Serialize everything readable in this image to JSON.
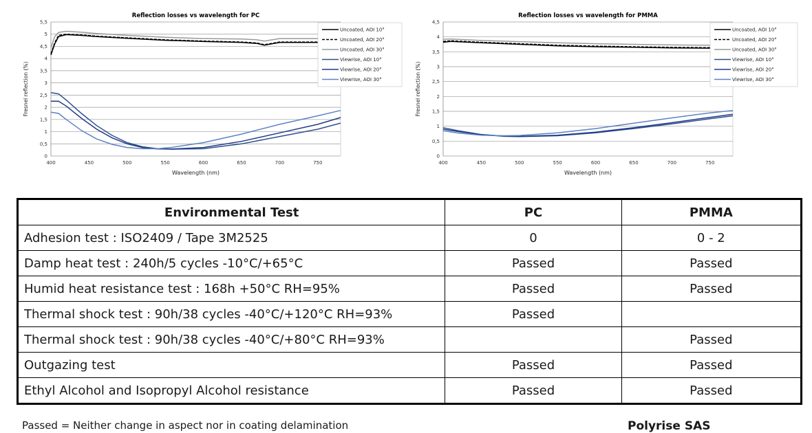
{
  "chart_data": [
    {
      "type": "line",
      "title": "Reflection losses vs wavelength for PC",
      "xlabel": "Wavelength (nm)",
      "ylabel": "Fresnel reflection (%)",
      "xlim": [
        400,
        780
      ],
      "ylim": [
        0,
        5.5
      ],
      "xticks": [
        400,
        450,
        500,
        550,
        600,
        650,
        700,
        750
      ],
      "yticks": [
        0,
        0.5,
        1,
        1.5,
        2,
        2.5,
        3,
        3.5,
        4,
        4.5,
        5,
        5.5
      ],
      "grid": "horizontal",
      "legend": "top-right",
      "series": [
        {
          "name": "Uncoated, AOI 10°",
          "color": "#000000",
          "dash": "solid",
          "x": [
            400,
            405,
            410,
            420,
            440,
            460,
            500,
            550,
            600,
            650,
            670,
            680,
            700,
            750,
            780
          ],
          "y": [
            4.15,
            4.6,
            4.9,
            4.98,
            4.95,
            4.9,
            4.83,
            4.75,
            4.7,
            4.66,
            4.62,
            4.55,
            4.66,
            4.66,
            4.65
          ]
        },
        {
          "name": "Uncoated, AOI 20°",
          "color": "#000000",
          "dash": "dash",
          "x": [
            400,
            405,
            410,
            420,
            440,
            460,
            500,
            550,
            600,
            650,
            670,
            680,
            700,
            750,
            780
          ],
          "y": [
            4.2,
            4.65,
            4.95,
            5.0,
            4.97,
            4.92,
            4.85,
            4.77,
            4.72,
            4.68,
            4.64,
            4.57,
            4.68,
            4.68,
            4.67
          ]
        },
        {
          "name": "Uncoated, AOI 30°",
          "color": "#999999",
          "dash": "solid",
          "x": [
            400,
            405,
            410,
            420,
            440,
            460,
            500,
            550,
            600,
            650,
            670,
            680,
            700,
            750,
            780
          ],
          "y": [
            4.45,
            4.9,
            5.07,
            5.12,
            5.08,
            5.03,
            4.95,
            4.87,
            4.82,
            4.8,
            4.77,
            4.72,
            4.82,
            4.82,
            4.8
          ]
        },
        {
          "name": "Viewrise, AOI 10°",
          "color": "#2f4f8f",
          "dash": "solid",
          "x": [
            400,
            410,
            420,
            440,
            460,
            480,
            500,
            520,
            540,
            560,
            600,
            650,
            700,
            750,
            780
          ],
          "y": [
            2.6,
            2.55,
            2.3,
            1.75,
            1.25,
            0.85,
            0.55,
            0.38,
            0.3,
            0.28,
            0.3,
            0.5,
            0.8,
            1.1,
            1.35
          ]
        },
        {
          "name": "Viewrise, AOI 20°",
          "color": "#1f3a85",
          "dash": "solid",
          "x": [
            400,
            410,
            420,
            440,
            460,
            480,
            500,
            520,
            540,
            560,
            600,
            650,
            700,
            750,
            780
          ],
          "y": [
            2.25,
            2.25,
            2.05,
            1.55,
            1.1,
            0.75,
            0.5,
            0.35,
            0.29,
            0.29,
            0.35,
            0.6,
            0.95,
            1.3,
            1.58
          ]
        },
        {
          "name": "Viewrise, AOI 30°",
          "color": "#5c82c4",
          "dash": "solid",
          "x": [
            400,
            410,
            420,
            440,
            460,
            480,
            500,
            520,
            540,
            560,
            600,
            650,
            700,
            750,
            780
          ],
          "y": [
            1.8,
            1.75,
            1.5,
            1.05,
            0.7,
            0.48,
            0.35,
            0.3,
            0.3,
            0.36,
            0.55,
            0.9,
            1.3,
            1.65,
            1.87
          ]
        }
      ]
    },
    {
      "type": "line",
      "title": "Reflection losses vs wavelength for PMMA",
      "xlabel": "Wavelength (nm)",
      "ylabel": "Fresnel reflection (%)",
      "xlim": [
        400,
        780
      ],
      "ylim": [
        0,
        4.5
      ],
      "xticks": [
        400,
        450,
        500,
        550,
        600,
        650,
        700,
        750
      ],
      "yticks": [
        0,
        0.5,
        1,
        1.5,
        2,
        2.5,
        3,
        3.5,
        4,
        4.5
      ],
      "grid": "horizontal",
      "legend": "top-right",
      "series": [
        {
          "name": "Uncoated, AOI 10°",
          "color": "#000000",
          "dash": "solid",
          "x": [
            400,
            410,
            450,
            500,
            550,
            600,
            650,
            700,
            750,
            780
          ],
          "y": [
            3.82,
            3.85,
            3.8,
            3.75,
            3.7,
            3.67,
            3.65,
            3.63,
            3.62,
            3.62
          ]
        },
        {
          "name": "Uncoated, AOI 20°",
          "color": "#000000",
          "dash": "dash",
          "x": [
            400,
            410,
            450,
            500,
            550,
            600,
            650,
            700,
            750,
            780
          ],
          "y": [
            3.85,
            3.87,
            3.82,
            3.77,
            3.72,
            3.69,
            3.67,
            3.65,
            3.64,
            3.64
          ]
        },
        {
          "name": "Uncoated, AOI 30°",
          "color": "#999999",
          "dash": "solid",
          "x": [
            400,
            410,
            450,
            500,
            550,
            600,
            650,
            700,
            750,
            780
          ],
          "y": [
            3.92,
            3.93,
            3.88,
            3.84,
            3.8,
            3.77,
            3.75,
            3.73,
            3.72,
            3.72
          ]
        },
        {
          "name": "Viewrise, AOI 10°",
          "color": "#2f4f8f",
          "dash": "solid",
          "x": [
            400,
            420,
            450,
            480,
            500,
            550,
            600,
            650,
            700,
            750,
            780
          ],
          "y": [
            0.95,
            0.85,
            0.72,
            0.66,
            0.65,
            0.68,
            0.78,
            0.92,
            1.08,
            1.25,
            1.35
          ]
        },
        {
          "name": "Viewrise, AOI 20°",
          "color": "#1f3a85",
          "dash": "solid",
          "x": [
            400,
            420,
            450,
            480,
            500,
            550,
            600,
            650,
            700,
            750,
            780
          ],
          "y": [
            0.9,
            0.82,
            0.72,
            0.67,
            0.66,
            0.7,
            0.8,
            0.95,
            1.12,
            1.3,
            1.4
          ]
        },
        {
          "name": "Viewrise, AOI 30°",
          "color": "#5c82c4",
          "dash": "solid",
          "x": [
            400,
            420,
            450,
            480,
            500,
            550,
            600,
            650,
            700,
            750,
            780
          ],
          "y": [
            0.85,
            0.77,
            0.7,
            0.68,
            0.69,
            0.78,
            0.92,
            1.1,
            1.28,
            1.45,
            1.53
          ]
        }
      ]
    }
  ],
  "table": {
    "headers": [
      "Environmental Test",
      "PC",
      "PMMA"
    ],
    "rows": [
      [
        "Adhesion test : ISO2409 / Tape 3M2525",
        "0",
        "0 - 2"
      ],
      [
        "Damp heat test : 240h/5 cycles  -10°C/+65°C",
        "Passed",
        "Passed"
      ],
      [
        "Humid heat resistance test : 168h  +50°C RH=95%",
        "Passed",
        "Passed"
      ],
      [
        "Thermal shock test : 90h/38 cycles -40°C/+120°C RH=93%",
        "Passed",
        ""
      ],
      [
        "Thermal shock test : 90h/38 cycles -40°C/+80°C RH=93%",
        "",
        "Passed"
      ],
      [
        "Outgazing test",
        "Passed",
        "Passed"
      ],
      [
        "Ethyl Alcohol and Isopropyl Alcohol resistance",
        "Passed",
        "Passed"
      ]
    ]
  },
  "footnote": "Passed = Neither change in aspect nor in coating delamination",
  "company": "Polyrise SAS"
}
